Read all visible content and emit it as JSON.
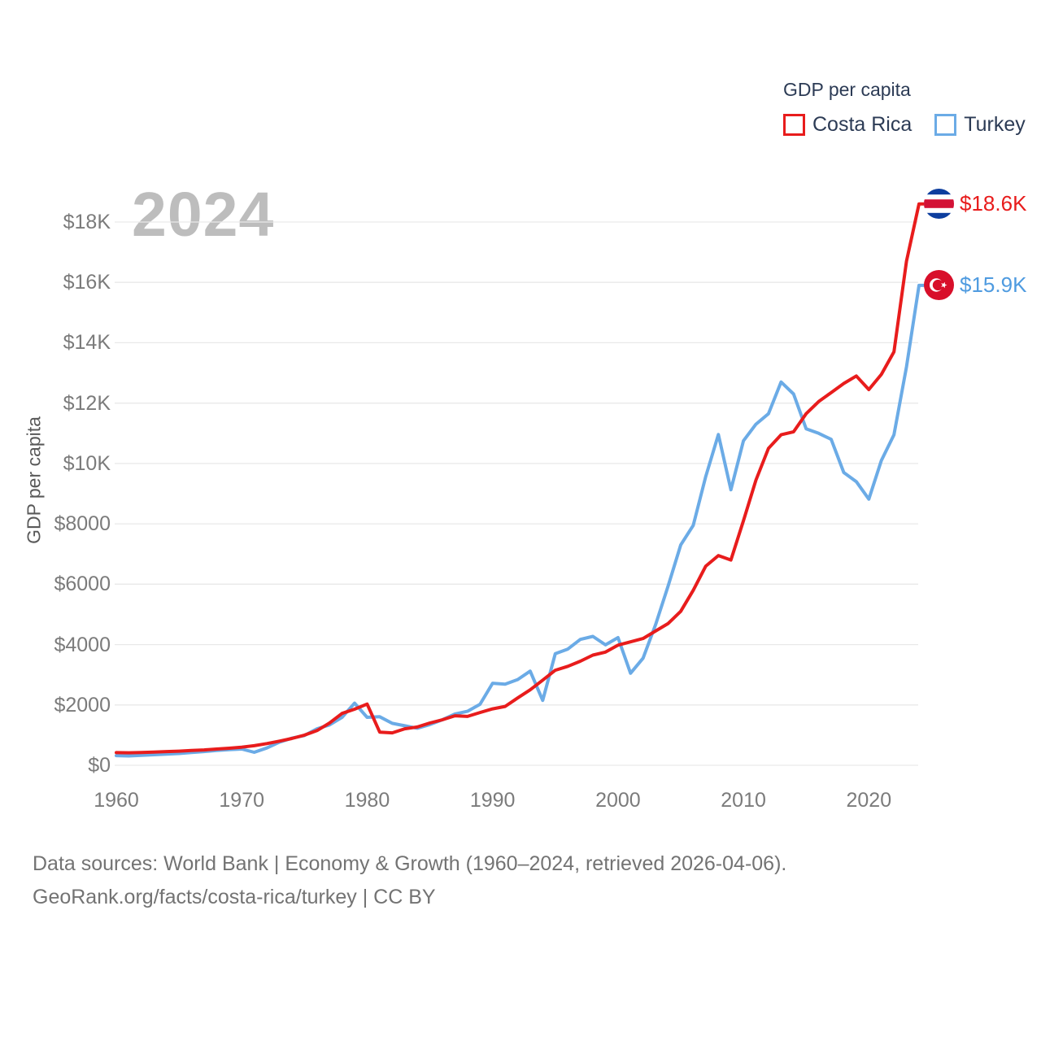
{
  "watermark": "2024",
  "legend": {
    "title": "GDP per capita",
    "items": [
      {
        "label": "Costa Rica",
        "color": "#e81c1c"
      },
      {
        "label": "Turkey",
        "color": "#6babe6"
      }
    ]
  },
  "end_labels": [
    {
      "series": "Costa Rica",
      "value": "$18.6K",
      "color": "#e81c1c",
      "flag": "costa-rica-flag-icon"
    },
    {
      "series": "Turkey",
      "value": "$15.9K",
      "color": "#4f9be0",
      "flag": "turkey-flag-icon"
    }
  ],
  "footer": {
    "line1": "Data sources: World Bank | Economy & Growth (1960–2024, retrieved 2026-04-06).",
    "line2": "GeoRank.org/facts/costa-rica/turkey | CC BY"
  },
  "chart_data": {
    "type": "line",
    "title": "GDP per capita",
    "ylabel": "GDP per capita",
    "xlim": [
      1960,
      2024
    ],
    "ylim": [
      0,
      18000
    ],
    "grid": true,
    "legend_position": "top-right",
    "x": [
      1960,
      1961,
      1962,
      1963,
      1964,
      1965,
      1966,
      1967,
      1968,
      1969,
      1970,
      1971,
      1972,
      1973,
      1974,
      1975,
      1976,
      1977,
      1978,
      1979,
      1980,
      1981,
      1982,
      1983,
      1984,
      1985,
      1986,
      1987,
      1988,
      1989,
      1990,
      1991,
      1992,
      1993,
      1994,
      1995,
      1996,
      1997,
      1998,
      1999,
      2000,
      2001,
      2002,
      2003,
      2004,
      2005,
      2006,
      2007,
      2008,
      2009,
      2010,
      2011,
      2012,
      2013,
      2014,
      2015,
      2016,
      2017,
      2018,
      2019,
      2020,
      2021,
      2022,
      2023,
      2024
    ],
    "series": [
      {
        "name": "Costa Rica",
        "color": "#e81c1c",
        "values": [
          420,
          415,
          425,
          440,
          455,
          470,
          490,
          510,
          540,
          565,
          600,
          650,
          720,
          800,
          890,
          1000,
          1150,
          1400,
          1720,
          1860,
          2030,
          1100,
          1075,
          1210,
          1270,
          1400,
          1510,
          1640,
          1620,
          1750,
          1870,
          1950,
          2230,
          2500,
          2820,
          3150,
          3280,
          3450,
          3650,
          3750,
          3980,
          4090,
          4200,
          4450,
          4700,
          5100,
          5800,
          6600,
          6950,
          6800,
          8100,
          9450,
          10500,
          10950,
          11050,
          11650,
          12050,
          12350,
          12650,
          12900,
          12450,
          12950,
          13700,
          16700,
          18600
        ]
      },
      {
        "name": "Turkey",
        "color": "#6babe6",
        "values": [
          320,
          310,
          330,
          350,
          370,
          390,
          425,
          455,
          490,
          520,
          540,
          430,
          575,
          765,
          900,
          985,
          1210,
          1340,
          1590,
          2060,
          1590,
          1610,
          1390,
          1310,
          1230,
          1350,
          1510,
          1700,
          1790,
          2020,
          2720,
          2690,
          2840,
          3120,
          2150,
          3700,
          3850,
          4170,
          4270,
          3990,
          4230,
          3050,
          3550,
          4660,
          5950,
          7300,
          7950,
          9570,
          10960,
          9130,
          10750,
          11300,
          11650,
          12700,
          12300,
          11150,
          11000,
          10800,
          9700,
          9400,
          8820,
          10100,
          10950,
          13200,
          15900
        ]
      }
    ],
    "xticks": [
      "1960",
      "1970",
      "1980",
      "1990",
      "2000",
      "2010",
      "2020"
    ],
    "ytick_values": [
      0,
      2000,
      4000,
      6000,
      8000,
      10000,
      12000,
      14000,
      16000,
      18000
    ],
    "ytick_labels": [
      "$0",
      "$2000",
      "$4000",
      "$6000",
      "$8000",
      "$10K",
      "$12K",
      "$14K",
      "$16K",
      "$18K"
    ]
  }
}
